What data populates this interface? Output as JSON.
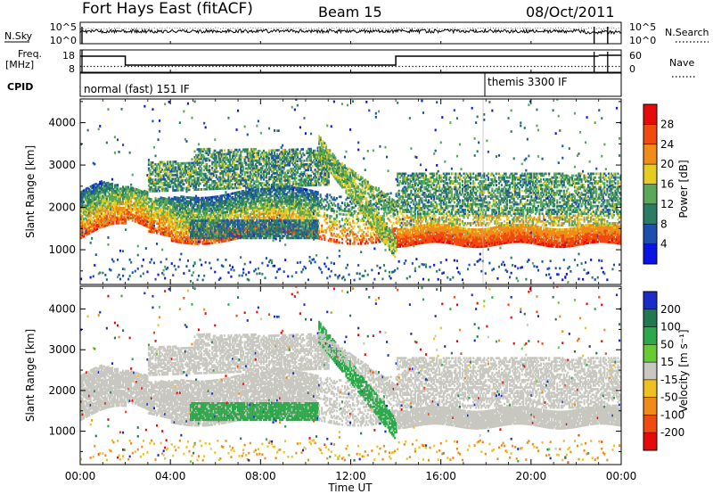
{
  "header": {
    "station": "Fort Hays East (fitACF)",
    "beam": "Beam 15",
    "date": "08/Oct/2011"
  },
  "status_panels": {
    "nsky_label": "N.Sky",
    "nsearch_label": "N.Search",
    "noise_ticks_left": [
      "10^5",
      "10^0"
    ],
    "noise_ticks_right": [
      "10^5",
      "10^0"
    ],
    "freq_label_1": "Freq.",
    "freq_label_2": "[MHz]",
    "freq_ticks": [
      "18",
      "8"
    ],
    "nave_label": "Nave",
    "nave_ticks": [
      "60",
      "0"
    ],
    "cpid_label": "CPID",
    "cpid_modes": [
      {
        "text": "normal (fast) 151 IF",
        "start_hour": 0
      },
      {
        "text": "themis 3300 IF",
        "start_hour": 18
      }
    ]
  },
  "x_axis": {
    "label": "Time UT",
    "ticks": [
      "00:00",
      "04:00",
      "08:00",
      "12:00",
      "16:00",
      "20:00",
      "00:00"
    ],
    "range_hours": [
      0,
      24
    ]
  },
  "chart_data": [
    {
      "type": "heatmap",
      "name": "power",
      "ylabel": "Slant Range [km]",
      "ylim": [
        180,
        4560
      ],
      "yticks": [
        1000,
        2000,
        3000,
        4000
      ],
      "xlim_hours": [
        0,
        24
      ],
      "colorbar_label": "Power [dB]",
      "colorbar_ticks": [
        "4",
        "8",
        "12",
        "16",
        "20",
        "24",
        "28"
      ],
      "colorbar_colors": [
        "#0a14e6",
        "#1c4fb0",
        "#2a7d64",
        "#5aa85a",
        "#e6cc20",
        "#f08c18",
        "#f04a10",
        "#e60a0a"
      ],
      "features": [
        {
          "desc_band": "lower band",
          "t_start": 0.0,
          "t_end": 14.0,
          "range_start_km": 1300,
          "range_end_km": 2400,
          "typical_value_db": 22
        },
        {
          "desc_band": "upper band",
          "t_start": 3.0,
          "t_end": 11.0,
          "range_start_km": 2300,
          "range_end_km": 3300,
          "typical_value_db": 14
        },
        {
          "desc_band": "mid band",
          "t_start": 4.5,
          "t_end": 10.5,
          "range_start_km": 1200,
          "range_end_km": 1700,
          "typical_value_db": 10
        },
        {
          "desc_band": "descending streak",
          "t_start": 10.5,
          "t_end": 14.0,
          "range_start_km": 3500,
          "range_end_km": 1000,
          "typical_value_db": 16
        },
        {
          "desc_band": "evening band",
          "t_start": 14.0,
          "t_end": 24.0,
          "range_start_km": 1100,
          "range_end_km": 1500,
          "typical_value_db": 28
        },
        {
          "desc_band": "evening upper band",
          "t_start": 14.0,
          "t_end": 24.0,
          "range_start_km": 1800,
          "range_end_km": 2800,
          "typical_value_db": 12
        }
      ]
    },
    {
      "type": "heatmap",
      "name": "velocity",
      "ylabel": "Slant Range [km]",
      "ylim": [
        180,
        4560
      ],
      "yticks": [
        1000,
        2000,
        3000,
        4000
      ],
      "xlim_hours": [
        0,
        24
      ],
      "colorbar_label": "Velocity [m s⁻¹]",
      "colorbar_ticks": [
        "200",
        "100",
        "50",
        "15",
        "-15",
        "-50",
        "-100",
        "-200"
      ],
      "colorbar_colors": [
        "#1a2cc8",
        "#1f7a50",
        "#2da84a",
        "#66cc33",
        "#c8c8c0",
        "#f0c020",
        "#f08a18",
        "#f04a10",
        "#e60a0a"
      ],
      "features": [
        {
          "desc_band": "ground scatter",
          "t_start": 0.0,
          "t_end": 24.0,
          "range_start_km": 1200,
          "range_end_km": 3300,
          "typical_value_ms": 0
        },
        {
          "desc_band": "positive velocity patch",
          "t_start": 5.0,
          "t_end": 10.5,
          "range_start_km": 1300,
          "range_end_km": 1700,
          "typical_value_ms": 60
        },
        {
          "desc_band": "descending streak",
          "t_start": 11.0,
          "t_end": 14.0,
          "range_start_km": 3400,
          "range_end_km": 1100,
          "typical_value_ms": 60
        }
      ]
    }
  ]
}
